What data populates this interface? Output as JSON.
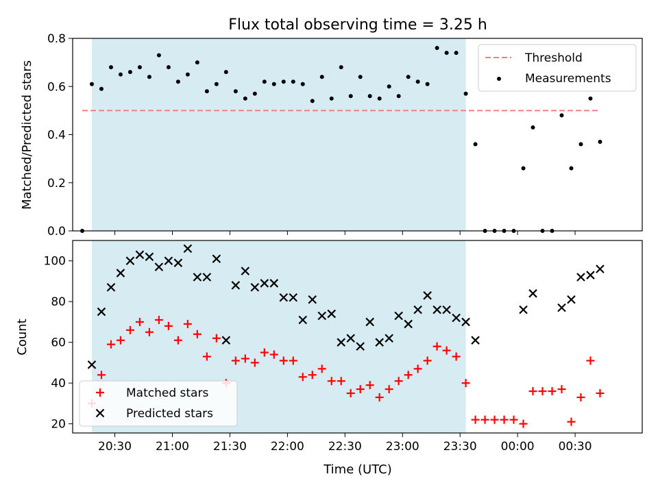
{
  "title": "Flux total observing time = 3.25 h",
  "x_ticks": [
    "20:30",
    "21:00",
    "21:30",
    "22:00",
    "22:30",
    "23:00",
    "23:30",
    "00:00",
    "00:30"
  ],
  "colors": {
    "shade": "#add8e6",
    "threshold": "#f08080",
    "measurement": "#000000",
    "matched": "#ff0000",
    "predicted": "#000000"
  },
  "chart_data": [
    {
      "type": "scatter",
      "ylabel": "Matched/Predicted stars",
      "xlim": [
        "20:08",
        "01:05"
      ],
      "ylim": [
        0,
        0.8
      ],
      "y_ticks": [
        "0.0",
        "0.2",
        "0.4",
        "0.6",
        "0.8"
      ],
      "shaded_region": [
        "20:18",
        "23:33"
      ],
      "threshold": {
        "name": "Threshold",
        "value": 0.5,
        "x_range": [
          "20:13",
          "00:43"
        ]
      },
      "legend": "top-right",
      "series": [
        {
          "name": "Measurements",
          "points": [
            [
              "20:13",
              0.0
            ],
            [
              "20:18",
              0.61
            ],
            [
              "20:23",
              0.59
            ],
            [
              "20:28",
              0.68
            ],
            [
              "20:33",
              0.65
            ],
            [
              "20:38",
              0.66
            ],
            [
              "20:43",
              0.68
            ],
            [
              "20:48",
              0.64
            ],
            [
              "20:53",
              0.73
            ],
            [
              "20:58",
              0.68
            ],
            [
              "21:03",
              0.62
            ],
            [
              "21:08",
              0.65
            ],
            [
              "21:13",
              0.7
            ],
            [
              "21:18",
              0.58
            ],
            [
              "21:23",
              0.61
            ],
            [
              "21:28",
              0.66
            ],
            [
              "21:33",
              0.58
            ],
            [
              "21:38",
              0.55
            ],
            [
              "21:43",
              0.57
            ],
            [
              "21:48",
              0.62
            ],
            [
              "21:53",
              0.61
            ],
            [
              "21:58",
              0.62
            ],
            [
              "22:03",
              0.62
            ],
            [
              "22:08",
              0.61
            ],
            [
              "22:13",
              0.54
            ],
            [
              "22:18",
              0.64
            ],
            [
              "22:23",
              0.55
            ],
            [
              "22:28",
              0.68
            ],
            [
              "22:33",
              0.56
            ],
            [
              "22:38",
              0.64
            ],
            [
              "22:43",
              0.56
            ],
            [
              "22:48",
              0.55
            ],
            [
              "22:53",
              0.6
            ],
            [
              "22:58",
              0.56
            ],
            [
              "23:03",
              0.64
            ],
            [
              "23:08",
              0.62
            ],
            [
              "23:13",
              0.61
            ],
            [
              "23:18",
              0.76
            ],
            [
              "23:23",
              0.74
            ],
            [
              "23:28",
              0.74
            ],
            [
              "23:33",
              0.57
            ],
            [
              "23:38",
              0.36
            ],
            [
              "23:43",
              0.0
            ],
            [
              "23:48",
              0.0
            ],
            [
              "23:53",
              0.0
            ],
            [
              "23:58",
              0.0
            ],
            [
              "00:03",
              0.26
            ],
            [
              "00:08",
              0.43
            ],
            [
              "00:13",
              0.0
            ],
            [
              "00:18",
              0.0
            ],
            [
              "00:23",
              0.48
            ],
            [
              "00:28",
              0.26
            ],
            [
              "00:33",
              0.36
            ],
            [
              "00:38",
              0.55
            ],
            [
              "00:43",
              0.37
            ]
          ]
        }
      ]
    },
    {
      "type": "scatter",
      "xlabel": "Time (UTC)",
      "ylabel": "Count",
      "xlim": [
        "20:08",
        "01:05"
      ],
      "ylim": [
        15.5,
        110
      ],
      "y_ticks": [
        "20",
        "40",
        "60",
        "80",
        "100"
      ],
      "shaded_region": [
        "20:18",
        "23:33"
      ],
      "legend": "bottom-left",
      "series": [
        {
          "name": "Matched stars",
          "marker": "+",
          "points": [
            [
              "20:18",
              30
            ],
            [
              "20:23",
              44
            ],
            [
              "20:28",
              59
            ],
            [
              "20:33",
              61
            ],
            [
              "20:38",
              66
            ],
            [
              "20:43",
              70
            ],
            [
              "20:48",
              65
            ],
            [
              "20:53",
              71
            ],
            [
              "20:58",
              68
            ],
            [
              "21:03",
              61
            ],
            [
              "21:08",
              69
            ],
            [
              "21:13",
              64
            ],
            [
              "21:18",
              53
            ],
            [
              "21:23",
              62
            ],
            [
              "21:28",
              40
            ],
            [
              "21:33",
              51
            ],
            [
              "21:38",
              52
            ],
            [
              "21:43",
              50
            ],
            [
              "21:48",
              55
            ],
            [
              "21:53",
              54
            ],
            [
              "21:58",
              51
            ],
            [
              "22:03",
              51
            ],
            [
              "22:08",
              43
            ],
            [
              "22:13",
              44
            ],
            [
              "22:18",
              47
            ],
            [
              "22:23",
              41
            ],
            [
              "22:28",
              41
            ],
            [
              "22:33",
              35
            ],
            [
              "22:38",
              37
            ],
            [
              "22:43",
              39
            ],
            [
              "22:48",
              33
            ],
            [
              "22:53",
              37
            ],
            [
              "22:58",
              41
            ],
            [
              "23:03",
              44
            ],
            [
              "23:08",
              47
            ],
            [
              "23:13",
              51
            ],
            [
              "23:18",
              58
            ],
            [
              "23:23",
              56
            ],
            [
              "23:28",
              53
            ],
            [
              "23:33",
              40
            ],
            [
              "23:38",
              22
            ],
            [
              "23:43",
              22
            ],
            [
              "23:48",
              22
            ],
            [
              "23:53",
              22
            ],
            [
              "23:58",
              22
            ],
            [
              "00:03",
              20
            ],
            [
              "00:08",
              36
            ],
            [
              "00:13",
              36
            ],
            [
              "00:18",
              36
            ],
            [
              "00:23",
              37
            ],
            [
              "00:28",
              21
            ],
            [
              "00:33",
              33
            ],
            [
              "00:38",
              51
            ],
            [
              "00:43",
              35
            ]
          ]
        },
        {
          "name": "Predicted stars",
          "marker": "x",
          "points": [
            [
              "20:18",
              49
            ],
            [
              "20:23",
              75
            ],
            [
              "20:28",
              87
            ],
            [
              "20:33",
              94
            ],
            [
              "20:38",
              100
            ],
            [
              "20:43",
              103
            ],
            [
              "20:48",
              102
            ],
            [
              "20:53",
              97
            ],
            [
              "20:58",
              100
            ],
            [
              "21:03",
              99
            ],
            [
              "21:08",
              106
            ],
            [
              "21:13",
              92
            ],
            [
              "21:18",
              92
            ],
            [
              "21:23",
              101
            ],
            [
              "21:28",
              61
            ],
            [
              "21:33",
              88
            ],
            [
              "21:38",
              95
            ],
            [
              "21:43",
              87
            ],
            [
              "21:48",
              89
            ],
            [
              "21:53",
              89
            ],
            [
              "21:58",
              82
            ],
            [
              "22:03",
              82
            ],
            [
              "22:08",
              71
            ],
            [
              "22:13",
              81
            ],
            [
              "22:18",
              73
            ],
            [
              "22:23",
              74
            ],
            [
              "22:28",
              60
            ],
            [
              "22:33",
              62
            ],
            [
              "22:38",
              58
            ],
            [
              "22:43",
              70
            ],
            [
              "22:48",
              60
            ],
            [
              "22:53",
              62
            ],
            [
              "22:58",
              73
            ],
            [
              "23:03",
              69
            ],
            [
              "23:08",
              76
            ],
            [
              "23:13",
              83
            ],
            [
              "23:18",
              76
            ],
            [
              "23:23",
              76
            ],
            [
              "23:28",
              72
            ],
            [
              "23:33",
              70
            ],
            [
              "23:38",
              61
            ],
            [
              "00:03",
              76
            ],
            [
              "00:08",
              84
            ],
            [
              "00:23",
              77
            ],
            [
              "00:28",
              81
            ],
            [
              "00:33",
              92
            ],
            [
              "00:38",
              93
            ],
            [
              "00:43",
              96
            ]
          ]
        }
      ]
    }
  ]
}
